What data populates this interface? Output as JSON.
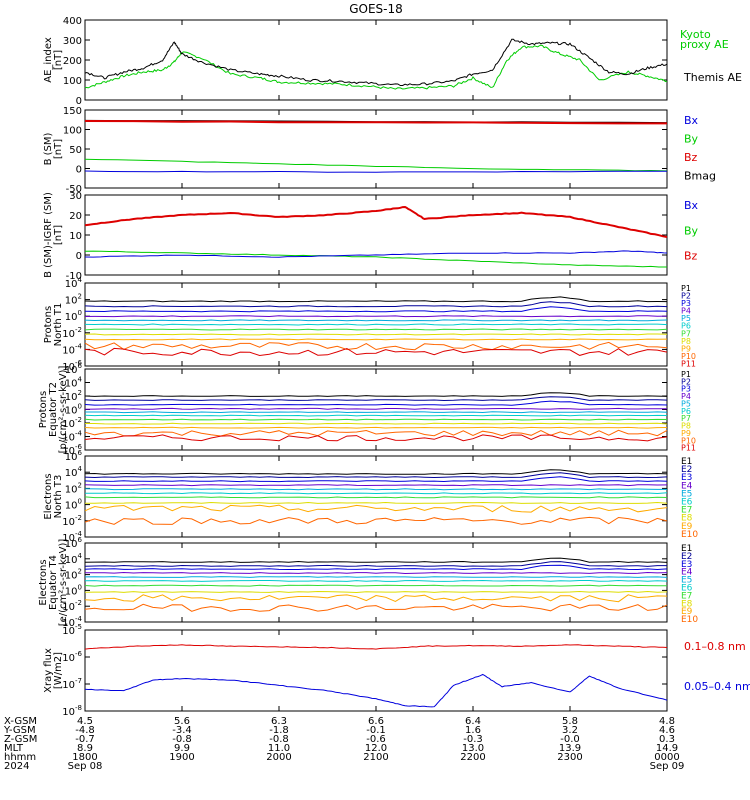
{
  "title": "GOES-18",
  "colors": {
    "black": "#000000",
    "red": "#dd0000",
    "green": "#00cc00",
    "blue": "#0000dd",
    "navy": "#000099",
    "purple": "#6600cc",
    "cyan": "#00aadd",
    "teal": "#00cccc",
    "lime": "#33dd33",
    "yellow": "#dddd00",
    "orange": "#ffaa00",
    "darkorange": "#ff6600",
    "darkred": "#aa0000"
  },
  "chart_data": [
    {
      "type": "line",
      "panel": "ae",
      "ylabel": [
        "AE_index",
        "[nT]"
      ],
      "yscale": "linear",
      "ylim": [
        0,
        400
      ],
      "ytick_labels": [
        "400",
        "300",
        "200",
        "100",
        "0"
      ],
      "legend": [
        {
          "text": "Kyoto",
          "color": "green"
        },
        {
          "text": "proxy AE",
          "color": "green"
        },
        {
          "text": "Themis AE",
          "color": "black"
        }
      ],
      "series": [
        {
          "name": "Kyoto proxy AE",
          "color": "green",
          "x": [
            0,
            0.2,
            0.4,
            0.6,
            0.8,
            0.92,
            1.0,
            1.2,
            1.5,
            1.8,
            2.0,
            2.3,
            2.6,
            2.9,
            3.2,
            3.5,
            3.8,
            4.0,
            4.2,
            4.35,
            4.5,
            4.7,
            4.9,
            5.1,
            5.3,
            5.6,
            5.8,
            6.0
          ],
          "y": [
            60,
            90,
            120,
            140,
            150,
            190,
            240,
            210,
            130,
            110,
            90,
            85,
            80,
            70,
            55,
            60,
            70,
            110,
            60,
            200,
            265,
            270,
            230,
            200,
            100,
            140,
            120,
            95
          ]
        },
        {
          "name": "Themis AE",
          "color": "black",
          "x": [
            0,
            0.2,
            0.4,
            0.6,
            0.8,
            0.92,
            1.0,
            1.2,
            1.5,
            1.8,
            2.0,
            2.3,
            2.6,
            2.9,
            3.2,
            3.5,
            3.8,
            4.0,
            4.2,
            4.4,
            4.6,
            4.8,
            5.0,
            5.2,
            5.4,
            5.6,
            5.8,
            6.0
          ],
          "y": [
            140,
            110,
            140,
            160,
            200,
            290,
            230,
            190,
            150,
            130,
            120,
            100,
            95,
            85,
            75,
            80,
            95,
            130,
            150,
            300,
            280,
            285,
            280,
            210,
            140,
            130,
            160,
            180
          ]
        }
      ]
    },
    {
      "type": "line",
      "panel": "b_sm",
      "ylabel": [
        "B (SM)",
        "[nT]"
      ],
      "yscale": "linear",
      "ylim": [
        -60,
        150
      ],
      "ytick_labels": [
        "150",
        "100",
        "50",
        "0",
        "-50"
      ],
      "legend": [
        {
          "text": "Bx",
          "color": "blue"
        },
        {
          "text": "By",
          "color": "green"
        },
        {
          "text": "Bz",
          "color": "red"
        },
        {
          "text": "Bmag",
          "color": "black"
        }
      ],
      "series": [
        {
          "name": "Bmag",
          "color": "black",
          "x": [
            0,
            6
          ],
          "y": [
            122,
            116
          ]
        },
        {
          "name": "Bz",
          "color": "red",
          "x": [
            0,
            6
          ],
          "y": [
            120,
            114
          ]
        },
        {
          "name": "By",
          "color": "green",
          "x": [
            0,
            2,
            4,
            6
          ],
          "y": [
            18,
            5,
            -8,
            -14
          ]
        },
        {
          "name": "Bx",
          "color": "blue",
          "x": [
            0,
            3,
            6
          ],
          "y": [
            -15,
            -17,
            -15
          ]
        }
      ]
    },
    {
      "type": "line",
      "panel": "b_igrf",
      "ylabel": [
        "B (SM)-IGRF (SM)",
        "[nT]"
      ],
      "yscale": "linear",
      "ylim": [
        -10,
        30
      ],
      "ytick_labels": [
        "30",
        "20",
        "10",
        "0",
        "-10"
      ],
      "legend": [
        {
          "text": "Bx",
          "color": "blue"
        },
        {
          "text": "By",
          "color": "green"
        },
        {
          "text": "Bz",
          "color": "red"
        }
      ],
      "series": [
        {
          "name": "Bz",
          "color": "red",
          "x": [
            0,
            0.5,
            1.0,
            1.5,
            2.0,
            2.5,
            3.0,
            3.3,
            3.5,
            4.0,
            4.5,
            5.0,
            5.5,
            6.0
          ],
          "y": [
            15,
            18,
            20,
            21,
            19,
            20,
            22,
            24,
            18,
            20,
            21,
            19,
            14,
            9
          ]
        },
        {
          "name": "By",
          "color": "green",
          "x": [
            0,
            1,
            2,
            3,
            4,
            5,
            6
          ],
          "y": [
            2,
            1,
            0,
            -1,
            -3,
            -5,
            -6
          ]
        },
        {
          "name": "Bx",
          "color": "blue",
          "x": [
            0,
            1,
            2,
            3,
            4,
            5,
            5.6,
            6
          ],
          "y": [
            -1,
            0,
            -1,
            0,
            1,
            1,
            2,
            1
          ]
        }
      ]
    },
    {
      "type": "line",
      "panel": "p_t1",
      "ylabel": [
        "Protons",
        "North T1"
      ],
      "yscale": "log",
      "ylim": [
        -6,
        4
      ],
      "ytick_labels": [
        "10^4",
        "10^2",
        "10^0",
        "10^-2",
        "10^-4",
        "10^-6"
      ],
      "legend": [
        "P1",
        "P2",
        "P3",
        "P4",
        "P5",
        "P6",
        "P7",
        "P8",
        "P9",
        "P10",
        "P11"
      ],
      "series_levels": [
        1.8,
        1.2,
        0.6,
        0.0,
        -0.5,
        -1.0,
        -1.6,
        -2.2,
        -2.8,
        -3.6,
        -4.3
      ]
    },
    {
      "type": "line",
      "panel": "p_t2",
      "ylabel": [
        "Protons",
        "Equator T2",
        "[p/(cm²-s-sr-keV)]"
      ],
      "yscale": "log",
      "ylim": [
        -6,
        6
      ],
      "ytick_labels": [
        "10^6",
        "10^4",
        "10^2",
        "10^0",
        "10^-2",
        "10^-4",
        "10^-6"
      ],
      "legend": [
        "P1",
        "P2",
        "P3",
        "P4",
        "P5",
        "P6",
        "P7",
        "P8",
        "P9",
        "P10",
        "P11"
      ],
      "series_levels": [
        2.0,
        1.4,
        0.7,
        0.1,
        -0.4,
        -0.9,
        -1.5,
        -2.1,
        -2.7,
        -3.5,
        -4.2
      ]
    },
    {
      "type": "line",
      "panel": "e_t3",
      "ylabel": [
        "Electrons",
        "North T3"
      ],
      "yscale": "log",
      "ylim": [
        -4,
        6
      ],
      "ytick_labels": [
        "10^6",
        "10^4",
        "10^2",
        "10^0",
        "10^-2",
        "10^-4"
      ],
      "legend": [
        "E1",
        "E2",
        "E3",
        "E4",
        "E5",
        "E6",
        "E7",
        "E8",
        "E9",
        "E10"
      ],
      "series_levels": [
        3.8,
        3.4,
        2.9,
        2.4,
        1.9,
        1.4,
        0.9,
        0.2,
        -0.5,
        -2.0
      ]
    },
    {
      "type": "line",
      "panel": "e_t4",
      "ylabel": [
        "Electrons",
        "Equator T4",
        "[e/(cm²-s-sr-keV)]"
      ],
      "yscale": "log",
      "ylim": [
        -4,
        6
      ],
      "ytick_labels": [
        "10^6",
        "10^4",
        "10^2",
        "10^0",
        "10^-2",
        "10^-4"
      ],
      "legend": [
        "E1",
        "E2",
        "E3",
        "E4",
        "E5",
        "E6",
        "E7",
        "E8",
        "E9",
        "E10"
      ],
      "series_levels": [
        3.6,
        3.1,
        2.7,
        2.2,
        1.7,
        1.2,
        0.6,
        -0.2,
        -1.0,
        -2.2
      ]
    },
    {
      "type": "line",
      "panel": "xray",
      "ylabel": [
        "Xray flux",
        "[W/m2]"
      ],
      "yscale": "log",
      "ylim": [
        -8,
        -5
      ],
      "ytick_labels": [
        "10^-5",
        "10^-6",
        "10^-7",
        "10^-8"
      ],
      "legend": [
        {
          "text": "0.1–0.8 nm",
          "color": "red"
        },
        {
          "text": "0.05–0.4 nm",
          "color": "blue"
        }
      ],
      "series": [
        {
          "name": "0.1-0.8 nm",
          "color": "red",
          "x": [
            0,
            0.5,
            1.0,
            1.5,
            2.0,
            2.5,
            3.0,
            3.5,
            4.0,
            4.5,
            5.0,
            5.5,
            6.0
          ],
          "y": [
            -5.7,
            -5.6,
            -5.55,
            -5.6,
            -5.62,
            -5.65,
            -5.7,
            -5.6,
            -5.58,
            -5.6,
            -5.55,
            -5.6,
            -5.65
          ]
        },
        {
          "name": "0.05-0.4 nm",
          "color": "blue",
          "x": [
            0,
            0.4,
            0.7,
            1.0,
            1.5,
            2.0,
            2.5,
            3.0,
            3.3,
            3.6,
            3.8,
            4.1,
            4.3,
            4.6,
            5.0,
            5.2,
            5.5,
            6.0
          ],
          "y": [
            -7.2,
            -7.25,
            -6.85,
            -6.8,
            -6.85,
            -7.05,
            -7.25,
            -7.55,
            -7.8,
            -7.85,
            -7.05,
            -6.65,
            -7.1,
            -6.95,
            -7.3,
            -6.7,
            -7.15,
            -7.6
          ]
        }
      ]
    }
  ],
  "x_axis": {
    "row_labels": [
      "X-GSM",
      "Y-GSM",
      "Z-GSM",
      "MLT",
      "hhmm",
      "2024"
    ],
    "columns": [
      [
        "4.5",
        "-4.8",
        "-0.7",
        "8.9",
        "1800",
        "Sep 08"
      ],
      [
        "5.6",
        "-3.4",
        "-0.8",
        "9.9",
        "1900",
        ""
      ],
      [
        "6.3",
        "-1.8",
        "-0.8",
        "11.0",
        "2000",
        ""
      ],
      [
        "6.6",
        "-0.1",
        "-0.6",
        "12.0",
        "2100",
        ""
      ],
      [
        "6.4",
        "1.6",
        "-0.3",
        "13.0",
        "2200",
        ""
      ],
      [
        "5.8",
        "3.2",
        "-0.0",
        "13.9",
        "2300",
        ""
      ],
      [
        "4.8",
        "4.6",
        "0.3",
        "14.9",
        "0000",
        "Sep 09"
      ]
    ]
  }
}
